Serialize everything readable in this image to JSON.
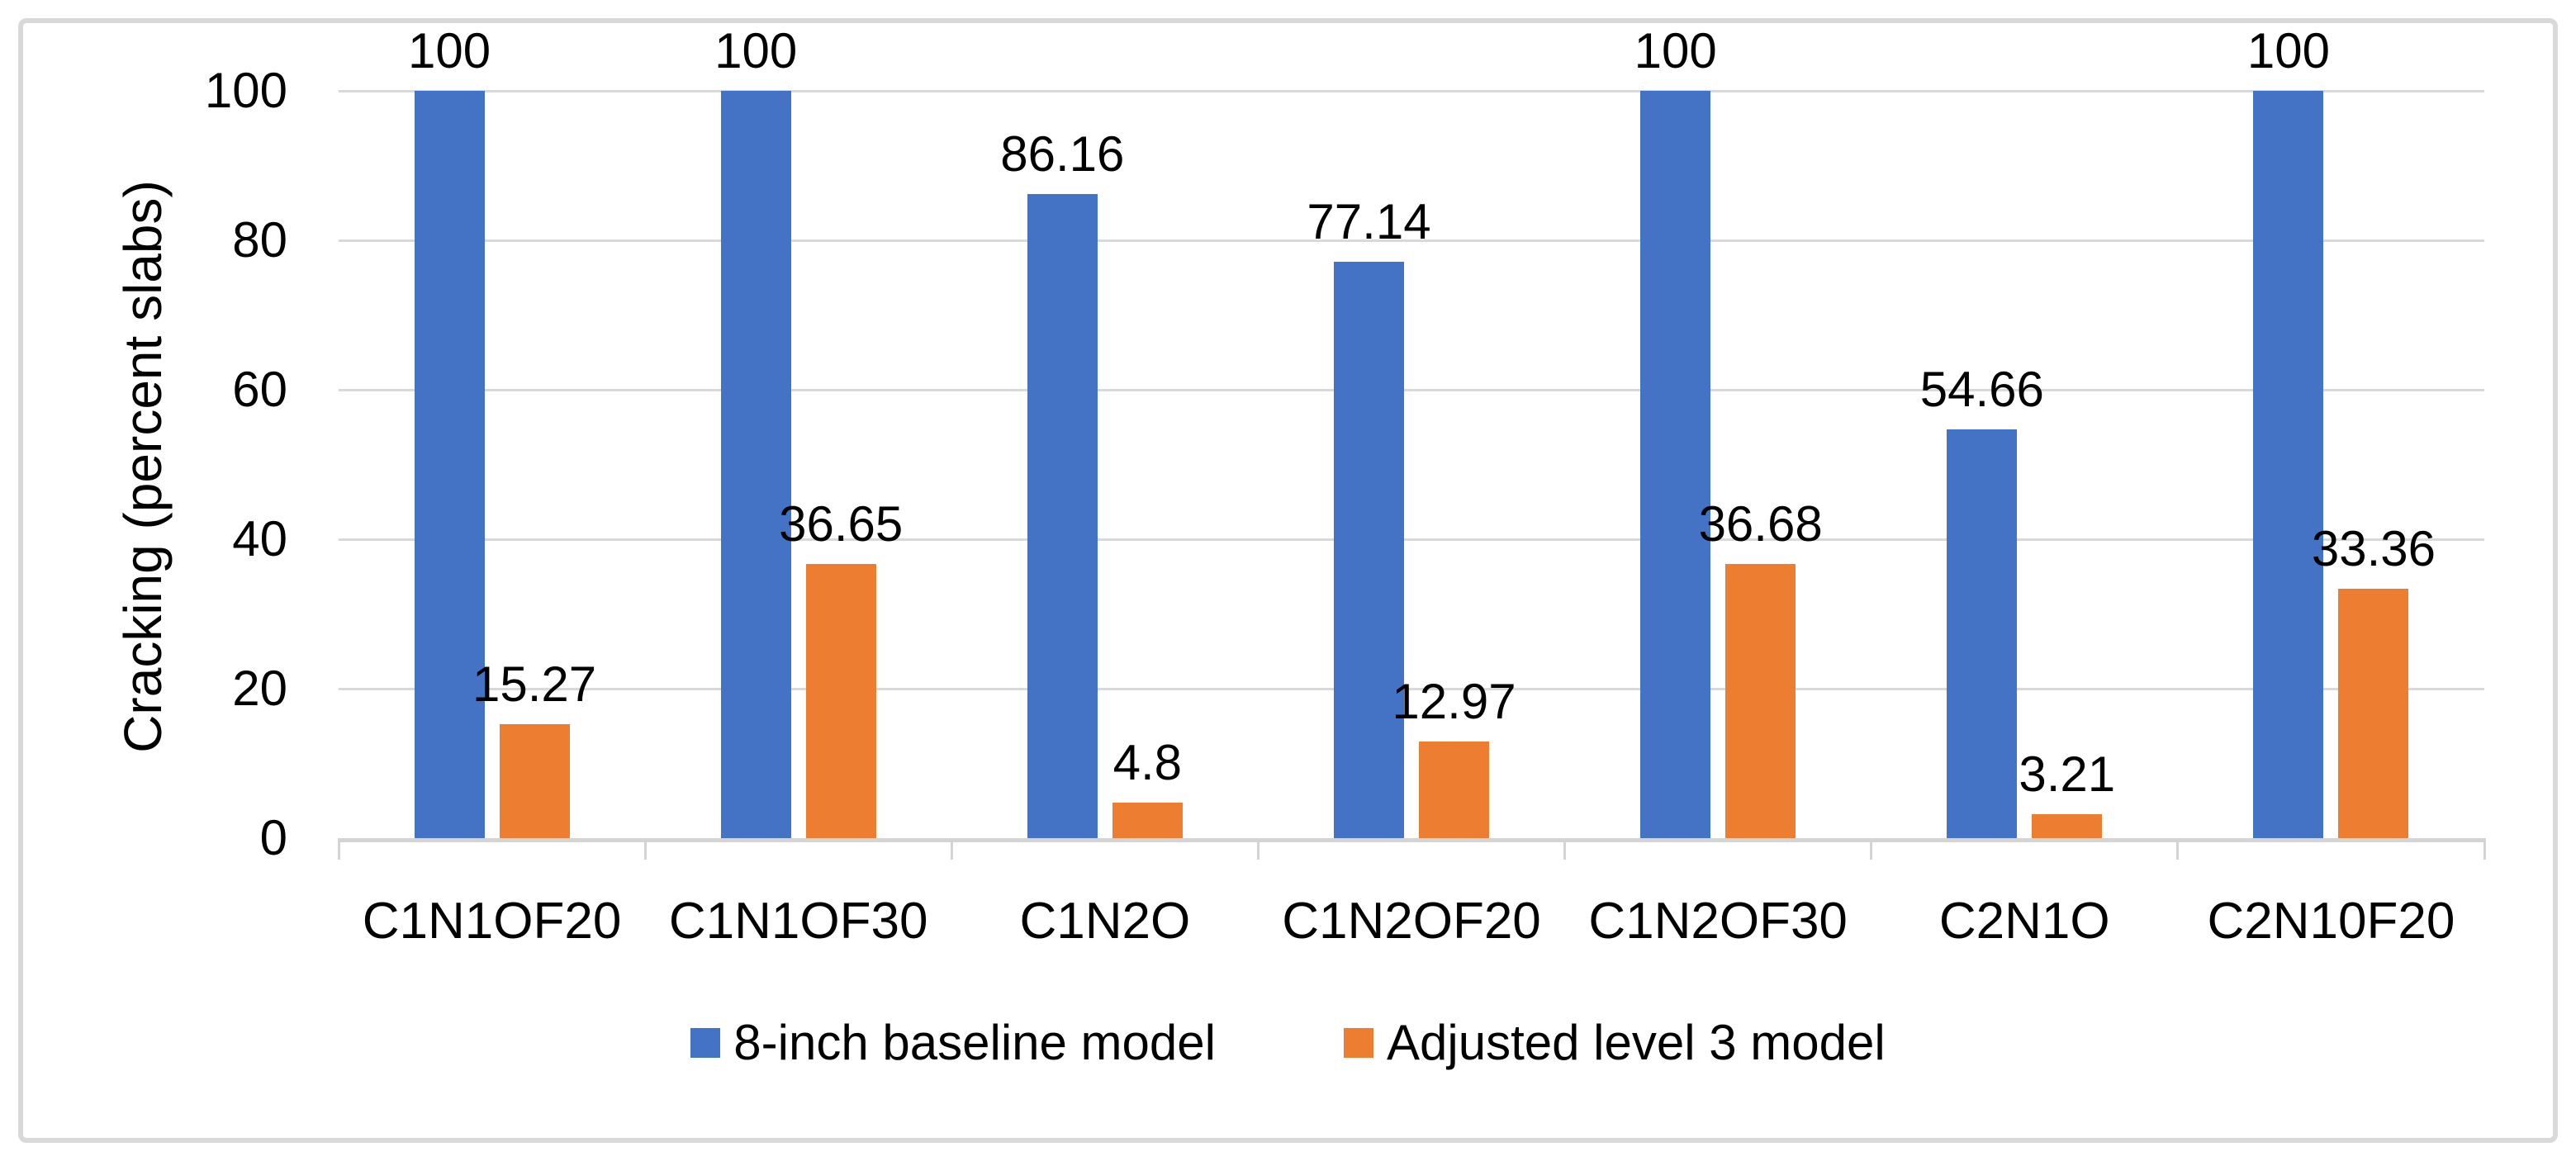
{
  "chart_data": {
    "type": "bar",
    "title": "",
    "ylabel": "Cracking (percent slabs)",
    "categories": [
      "C1N1OF20",
      "C1N1OF30",
      "C1N2O",
      "C1N2OF20",
      "C1N2OF30",
      "C2N1O",
      "C2N10F20"
    ],
    "series": [
      {
        "name": "8-inch baseline model",
        "color": "#4472C4",
        "values": [
          100,
          100,
          86.16,
          77.14,
          100,
          54.66,
          100
        ]
      },
      {
        "name": "Adjusted level 3 model",
        "color": "#ED7D31",
        "values": [
          15.27,
          36.65,
          4.8,
          12.97,
          36.68,
          3.21,
          33.36
        ]
      }
    ],
    "ylim": [
      0,
      100
    ],
    "yticks": [
      0,
      20,
      40,
      60,
      80,
      100
    ],
    "grid": true,
    "data_labels": true,
    "legend_position": "bottom"
  },
  "style": {
    "background": "#FFFFFF",
    "frame_color": "#D9D9D9",
    "grid_color": "#D9D9D9",
    "axis_color": "#D4D4D4",
    "text_color": "#000000",
    "series_blue": "#4472C4",
    "series_orange": "#ED7D31"
  }
}
